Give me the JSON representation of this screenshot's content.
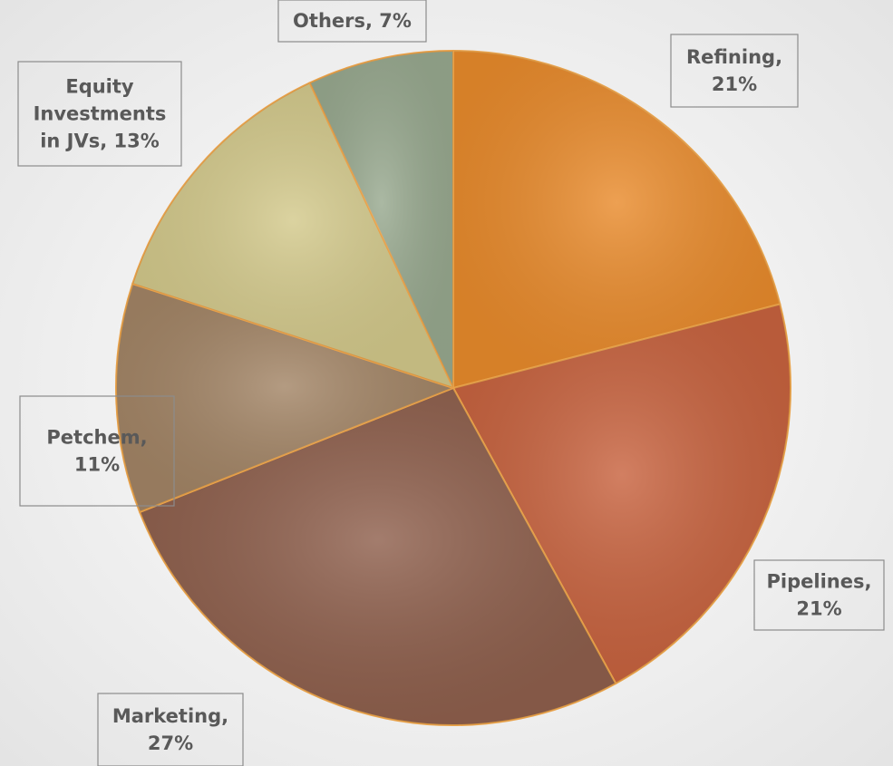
{
  "chart_data": {
    "type": "pie",
    "values": [
      21,
      21,
      27,
      11,
      13,
      7
    ],
    "value_labels": [
      "Refining,\n21%",
      "Pipelines,\n21%",
      "Marketing,\n27%",
      "Petchem,\n11%",
      "Equity\nInvestments\nin JVs, 13%",
      "Others, 7%"
    ],
    "colors": [
      "#e98b2c",
      "#c8633f",
      "#8f604d",
      "#a38566",
      "#d3c98b",
      "#98a98f"
    ],
    "start_angle": 90,
    "direction": "clockwise"
  }
}
